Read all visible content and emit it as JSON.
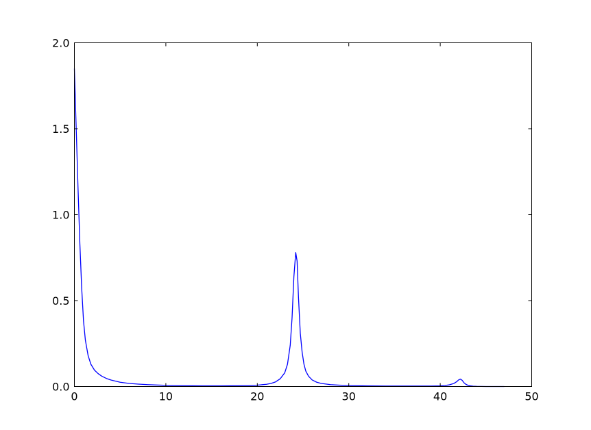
{
  "chart_data": {
    "type": "line",
    "title": "",
    "xlabel": "",
    "ylabel": "",
    "xlim": [
      0,
      50
    ],
    "ylim": [
      0,
      2.0
    ],
    "grid": false,
    "x_ticks": [
      0,
      10,
      20,
      30,
      40,
      50
    ],
    "x_tick_labels": [
      "0",
      "10",
      "20",
      "30",
      "40",
      "50"
    ],
    "y_ticks": [
      0,
      0.5,
      1.0,
      1.5,
      2.0
    ],
    "y_tick_labels": [
      "0.0",
      "0.5",
      "1.0",
      "1.5",
      "2.0"
    ],
    "series": [
      {
        "color": "#0000ff",
        "x": [
          0.0,
          0.2,
          0.4,
          0.6,
          0.8,
          1.0,
          1.2,
          1.5,
          1.8,
          2.2,
          2.6,
          3.0,
          3.5,
          4.0,
          5.0,
          6.0,
          7.0,
          8.0,
          10.0,
          12.0,
          14.0,
          16.0,
          18.0,
          19.0,
          20.0,
          21.0,
          21.5,
          22.0,
          22.5,
          23.0,
          23.3,
          23.6,
          23.8,
          24.0,
          24.2,
          24.35,
          24.5,
          24.7,
          24.9,
          25.1,
          25.3,
          25.6,
          26.0,
          26.5,
          27.0,
          28.0,
          29.0,
          30.0,
          32.0,
          34.0,
          36.0,
          38.0,
          39.0,
          40.0,
          40.5,
          41.0,
          41.5,
          41.8,
          42.0,
          42.2,
          42.4,
          42.5,
          42.6,
          42.8,
          43.0,
          43.3,
          43.6,
          44.0,
          45.0,
          46.0,
          47.0
        ],
        "y": [
          1.85,
          1.5,
          1.15,
          0.83,
          0.57,
          0.38,
          0.27,
          0.18,
          0.13,
          0.095,
          0.075,
          0.06,
          0.047,
          0.038,
          0.025,
          0.018,
          0.014,
          0.011,
          0.007,
          0.005,
          0.004,
          0.004,
          0.005,
          0.006,
          0.008,
          0.013,
          0.018,
          0.027,
          0.045,
          0.08,
          0.13,
          0.24,
          0.4,
          0.64,
          0.78,
          0.73,
          0.52,
          0.31,
          0.2,
          0.13,
          0.09,
          0.06,
          0.038,
          0.025,
          0.018,
          0.011,
          0.008,
          0.006,
          0.004,
          0.003,
          0.003,
          0.003,
          0.003,
          0.004,
          0.006,
          0.01,
          0.018,
          0.028,
          0.038,
          0.043,
          0.036,
          0.029,
          0.022,
          0.013,
          0.008,
          0.004,
          0.002,
          0.001,
          0.0,
          0.0,
          0.0
        ]
      }
    ]
  }
}
